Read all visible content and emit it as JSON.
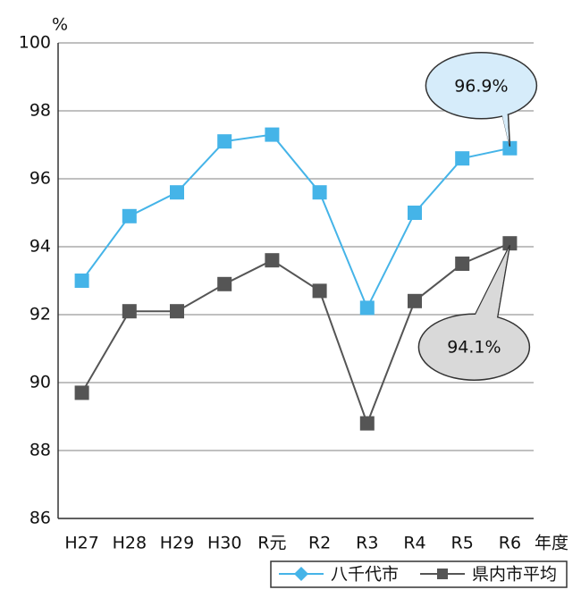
{
  "chart_data": {
    "type": "line",
    "y_unit": "%",
    "x_label": "年度",
    "categories": [
      "H27",
      "H28",
      "H29",
      "H30",
      "R元",
      "R2",
      "R3",
      "R4",
      "R5",
      "R6"
    ],
    "series": [
      {
        "name": "八千代市",
        "color": "#45b4e8",
        "values": [
          93.0,
          94.9,
          95.6,
          97.1,
          97.3,
          95.6,
          92.2,
          95.0,
          96.6,
          96.9
        ],
        "value_labels": [
          null,
          null,
          null,
          null,
          null,
          null,
          null,
          null,
          null,
          "96.9%"
        ]
      },
      {
        "name": "県内市平均",
        "color": "#555555",
        "values": [
          89.7,
          92.1,
          92.1,
          92.9,
          93.6,
          92.7,
          88.8,
          92.4,
          93.5,
          94.1
        ],
        "value_labels": [
          null,
          null,
          null,
          null,
          null,
          null,
          null,
          null,
          null,
          "94.1%"
        ]
      }
    ],
    "ylim": [
      86,
      100
    ],
    "yticks": [
      86,
      88,
      90,
      92,
      94,
      96,
      98,
      100
    ],
    "grid": true
  }
}
